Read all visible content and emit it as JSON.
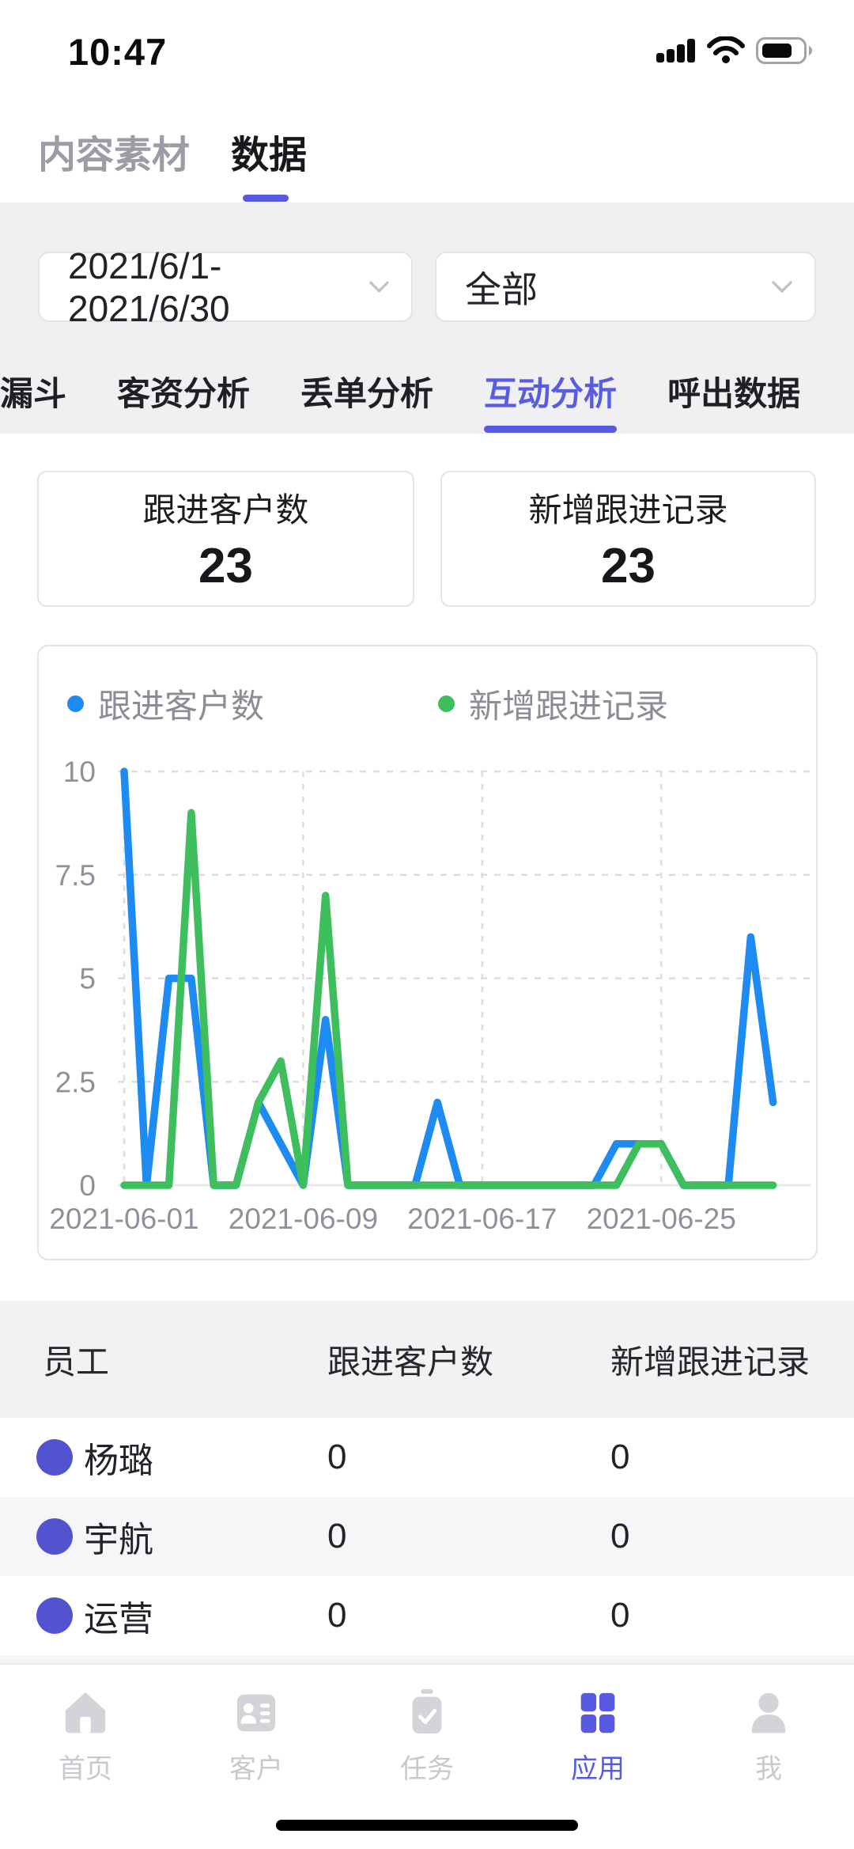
{
  "status_bar": {
    "time": "10:47",
    "icons": [
      "cellular-signal-icon",
      "wifi-icon",
      "battery-icon"
    ],
    "battery_level_pct": 60
  },
  "header": {
    "tabs": [
      {
        "label": "内容素材",
        "active": false
      },
      {
        "label": "数据",
        "active": true
      }
    ]
  },
  "filters": {
    "date_range": {
      "value": "2021/6/1-2021/6/30",
      "icon": "chevron-down-icon"
    },
    "scope": {
      "value": "全部",
      "icon": "chevron-down-icon"
    }
  },
  "analysis_tabs": {
    "items": [
      {
        "label": "转化漏斗",
        "active": false,
        "clipped": true
      },
      {
        "label": "客资分析",
        "active": false
      },
      {
        "label": "丢单分析",
        "active": false
      },
      {
        "label": "互动分析",
        "active": true
      },
      {
        "label": "呼出数据",
        "active": false
      }
    ]
  },
  "stats": {
    "cards": [
      {
        "label": "跟进客户数",
        "value": "23"
      },
      {
        "label": "新增跟进记录",
        "value": "23"
      }
    ]
  },
  "chart_data": {
    "type": "line",
    "title": "",
    "xlabel": "",
    "ylabel": "",
    "x": [
      "2021-06-01",
      "2021-06-02",
      "2021-06-03",
      "2021-06-04",
      "2021-06-05",
      "2021-06-06",
      "2021-06-07",
      "2021-06-08",
      "2021-06-09",
      "2021-06-10",
      "2021-06-11",
      "2021-06-12",
      "2021-06-13",
      "2021-06-14",
      "2021-06-15",
      "2021-06-16",
      "2021-06-17",
      "2021-06-18",
      "2021-06-19",
      "2021-06-20",
      "2021-06-21",
      "2021-06-22",
      "2021-06-23",
      "2021-06-24",
      "2021-06-25",
      "2021-06-26",
      "2021-06-27",
      "2021-06-28",
      "2021-06-29",
      "2021-06-30"
    ],
    "x_tick_indices": [
      0,
      8,
      16,
      24
    ],
    "x_tick_labels": [
      "2021-06-01",
      "2021-06-09",
      "2021-06-17",
      "2021-06-25"
    ],
    "ylim": [
      0,
      10
    ],
    "y_ticks": [
      0,
      2.5,
      5,
      7.5,
      10
    ],
    "grid": true,
    "legend_position": "top",
    "series": [
      {
        "name": "跟进客户数",
        "color": "#1e8bf2",
        "values": [
          10,
          0,
          5,
          5,
          0,
          0,
          2,
          1,
          0,
          4,
          0,
          0,
          0,
          0,
          2,
          0,
          0,
          0,
          0,
          0,
          0,
          0,
          1,
          1,
          1,
          0,
          0,
          0,
          6,
          2
        ]
      },
      {
        "name": "新增跟进记录",
        "color": "#3fbe5e",
        "values": [
          0,
          0,
          0,
          9,
          0,
          0,
          2,
          3,
          0,
          7,
          0,
          0,
          0,
          0,
          0,
          0,
          0,
          0,
          0,
          0,
          0,
          0,
          0,
          1,
          1,
          0,
          0,
          0,
          0,
          0
        ]
      }
    ]
  },
  "table": {
    "headers": [
      "员工",
      "跟进客户数",
      "新增跟进记录"
    ],
    "rows": [
      {
        "name": "杨璐",
        "values": [
          "0",
          "0"
        ]
      },
      {
        "name": "宇航",
        "values": [
          "0",
          "0"
        ]
      },
      {
        "name": "运营",
        "values": [
          "0",
          "0"
        ]
      }
    ]
  },
  "nav": {
    "items": [
      {
        "label": "首页",
        "icon": "home-icon",
        "active": false
      },
      {
        "label": "客户",
        "icon": "contacts-icon",
        "active": false
      },
      {
        "label": "任务",
        "icon": "tasks-icon",
        "active": false
      },
      {
        "label": "应用",
        "icon": "apps-grid-icon",
        "active": true
      },
      {
        "label": "我",
        "icon": "user-icon",
        "active": false
      }
    ]
  },
  "colors": {
    "accent": "#575ae0",
    "line_blue": "#1e8bf2",
    "line_green": "#3fbe5e",
    "avatar": "#5254cf",
    "section_bg": "#f0f0f2"
  }
}
